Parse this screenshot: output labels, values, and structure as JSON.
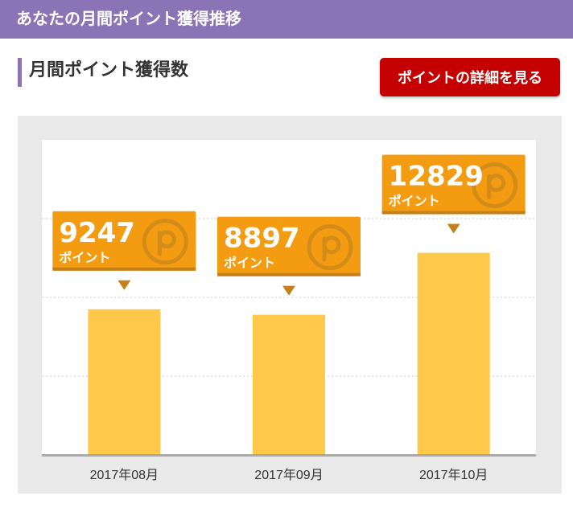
{
  "header": {
    "title": "あなたの月間ポイント獲得推移"
  },
  "section": {
    "title": "月間ポイント獲得数"
  },
  "actions": {
    "detail_button_label": "ポイントの詳細を見る"
  },
  "colors": {
    "header": "#8a74b5",
    "button": "#c40000",
    "bar": "#fec84b",
    "badge": "#f39c12",
    "badge_edge": "#c5801b",
    "point_icon": "#d28c17"
  },
  "chart_data": {
    "type": "bar",
    "categories": [
      "2017年08月",
      "2017年09月",
      "2017年10月"
    ],
    "values": [
      9247,
      8897,
      12829
    ],
    "value_unit_label": "ポイント",
    "value_icon": "point-coin-icon",
    "ylim": [
      0,
      20000
    ],
    "grid": true,
    "grid_style": "dotted",
    "title": "",
    "xlabel": "",
    "ylabel": ""
  }
}
